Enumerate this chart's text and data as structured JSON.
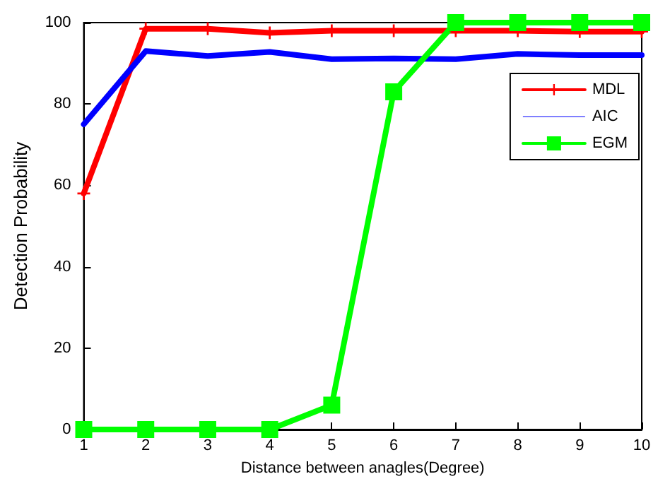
{
  "chart_data": {
    "type": "line",
    "xlabel": "Distance between anagles(Degree)",
    "ylabel": "Detection Probability",
    "x": [
      1,
      2,
      3,
      4,
      5,
      6,
      7,
      8,
      9,
      10
    ],
    "series": [
      {
        "name": "MDL",
        "color": "#ff0000",
        "marker": "cross",
        "values": [
          58,
          98.5,
          98.5,
          97.5,
          98,
          98,
          98,
          98,
          97.8,
          97.8
        ]
      },
      {
        "name": "AIC",
        "color": "#0000ff",
        "marker": "none",
        "values": [
          75,
          93,
          91.8,
          92.8,
          91,
          91.2,
          91,
          92.3,
          92,
          92
        ]
      },
      {
        "name": "EGM",
        "color": "#00ff00",
        "marker": "square",
        "values": [
          0,
          0,
          0,
          0,
          6,
          83,
          100,
          100,
          100,
          100
        ]
      }
    ],
    "xlim": [
      1,
      10
    ],
    "xticks": [
      1,
      2,
      3,
      4,
      5,
      6,
      7,
      8,
      9,
      10
    ],
    "ylim": [
      0,
      100
    ],
    "yticks": [
      0,
      20,
      40,
      60,
      80,
      100
    ],
    "grid": false,
    "legend": "top right"
  }
}
